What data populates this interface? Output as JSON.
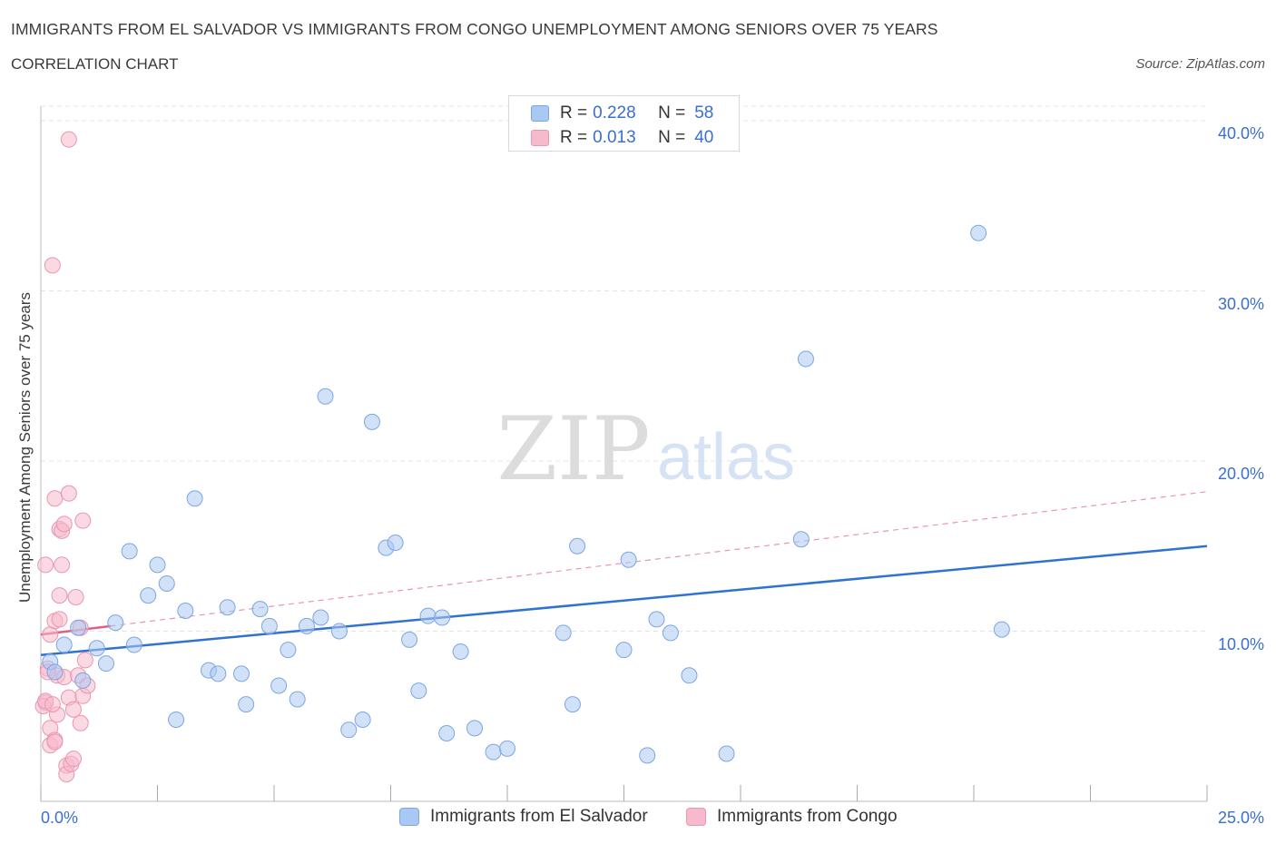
{
  "title": "IMMIGRANTS FROM EL SALVADOR VS IMMIGRANTS FROM CONGO UNEMPLOYMENT AMONG SENIORS OVER 75 YEARS",
  "subtitle": "CORRELATION CHART",
  "source": "Source: ZipAtlas.com",
  "watermark": {
    "zip": "ZIP",
    "atlas": "atlas"
  },
  "legend": {
    "rows": [
      {
        "r_label": "R = ",
        "r_value": "0.228",
        "n_label": "N = ",
        "n_value": "58",
        "color": "#a9c8f3",
        "border": "#7ea6e0"
      },
      {
        "r_label": "R = ",
        "r_value": "0.013",
        "n_label": "N = ",
        "n_value": "40",
        "color": "#f7b9cc",
        "border": "#e996b0"
      }
    ]
  },
  "bottom_legend": {
    "items": [
      {
        "label": "Immigrants from El Salvador",
        "color": "#a9c8f3",
        "border": "#7ea6e0"
      },
      {
        "label": "Immigrants from Congo",
        "color": "#f7b9cc",
        "border": "#e996b0"
      }
    ]
  },
  "chart_data": {
    "type": "scatter",
    "title": "IMMIGRANTS FROM EL SALVADOR VS IMMIGRANTS FROM CONGO UNEMPLOYMENT AMONG SENIORS OVER 75 YEARS",
    "xlabel": "",
    "ylabel": "Unemployment Among Seniors over 75 years",
    "xlim": [
      0,
      25
    ],
    "ylim": [
      0,
      40
    ],
    "x_tick_labels": [
      "0.0%",
      "25.0%"
    ],
    "y_tick_labels": [
      "10.0%",
      "20.0%",
      "30.0%",
      "40.0%"
    ],
    "y_ticks": [
      10,
      20,
      30,
      40
    ],
    "grid": true,
    "series": [
      {
        "name": "Immigrants from El Salvador",
        "color": "#a9c8f3",
        "stroke": "#7ea6e0",
        "line_color": "#2f72d2",
        "trend": {
          "x": [
            0,
            25
          ],
          "y": [
            8.6,
            15.0
          ],
          "style": "solid"
        },
        "points": [
          [
            0.2,
            8.2
          ],
          [
            0.3,
            7.6
          ],
          [
            0.5,
            9.2
          ],
          [
            0.8,
            10.2
          ],
          [
            0.9,
            7.1
          ],
          [
            1.2,
            9.0
          ],
          [
            1.4,
            8.1
          ],
          [
            1.6,
            10.5
          ],
          [
            1.9,
            14.7
          ],
          [
            2.0,
            9.2
          ],
          [
            2.3,
            12.1
          ],
          [
            2.5,
            13.9
          ],
          [
            2.7,
            12.8
          ],
          [
            2.9,
            4.8
          ],
          [
            3.1,
            11.2
          ],
          [
            3.3,
            17.8
          ],
          [
            3.6,
            7.7
          ],
          [
            3.8,
            7.5
          ],
          [
            4.0,
            11.4
          ],
          [
            4.3,
            7.5
          ],
          [
            4.4,
            5.7
          ],
          [
            4.7,
            11.3
          ],
          [
            4.9,
            10.3
          ],
          [
            5.1,
            6.8
          ],
          [
            5.3,
            8.9
          ],
          [
            5.5,
            6.0
          ],
          [
            5.7,
            10.3
          ],
          [
            6.0,
            10.8
          ],
          [
            6.1,
            23.8
          ],
          [
            6.4,
            10.0
          ],
          [
            6.6,
            4.2
          ],
          [
            6.9,
            4.8
          ],
          [
            7.1,
            22.3
          ],
          [
            7.4,
            14.9
          ],
          [
            7.6,
            15.2
          ],
          [
            7.9,
            9.5
          ],
          [
            8.1,
            6.5
          ],
          [
            8.3,
            10.9
          ],
          [
            8.6,
            10.8
          ],
          [
            8.7,
            4.0
          ],
          [
            9.0,
            8.8
          ],
          [
            9.3,
            4.3
          ],
          [
            9.7,
            2.9
          ],
          [
            10.0,
            3.1
          ],
          [
            11.2,
            9.9
          ],
          [
            11.4,
            5.7
          ],
          [
            11.5,
            15.0
          ],
          [
            12.5,
            8.9
          ],
          [
            12.6,
            14.2
          ],
          [
            13.0,
            2.7
          ],
          [
            13.2,
            10.7
          ],
          [
            13.5,
            9.9
          ],
          [
            13.9,
            7.4
          ],
          [
            14.7,
            2.8
          ],
          [
            16.3,
            15.4
          ],
          [
            16.4,
            26.0
          ],
          [
            20.1,
            33.4
          ],
          [
            20.6,
            10.1
          ]
        ]
      },
      {
        "name": "Immigrants from Congo",
        "color": "#f7b9cc",
        "stroke": "#e996b0",
        "line_color": "#e0608a",
        "trend": {
          "x": [
            0,
            25
          ],
          "y": [
            9.8,
            18.2
          ],
          "style": "dashed"
        },
        "trend_solid": {
          "x": [
            0,
            1.5
          ],
          "y": [
            9.8,
            10.3
          ]
        },
        "points": [
          [
            0.1,
            5.8
          ],
          [
            0.1,
            13.9
          ],
          [
            0.15,
            7.8
          ],
          [
            0.2,
            4.3
          ],
          [
            0.2,
            3.3
          ],
          [
            0.2,
            9.8
          ],
          [
            0.25,
            31.5
          ],
          [
            0.3,
            10.6
          ],
          [
            0.3,
            17.8
          ],
          [
            0.3,
            3.6
          ],
          [
            0.35,
            5.1
          ],
          [
            0.35,
            7.4
          ],
          [
            0.4,
            12.1
          ],
          [
            0.4,
            16.0
          ],
          [
            0.4,
            10.7
          ],
          [
            0.45,
            13.9
          ],
          [
            0.45,
            15.9
          ],
          [
            0.5,
            16.3
          ],
          [
            0.5,
            7.3
          ],
          [
            0.55,
            2.1
          ],
          [
            0.55,
            1.6
          ],
          [
            0.6,
            6.1
          ],
          [
            0.6,
            18.1
          ],
          [
            0.6,
            38.9
          ],
          [
            0.65,
            2.2
          ],
          [
            0.7,
            2.5
          ],
          [
            0.7,
            5.4
          ],
          [
            0.75,
            12.0
          ],
          [
            0.8,
            7.4
          ],
          [
            0.85,
            10.2
          ],
          [
            0.85,
            4.6
          ],
          [
            0.9,
            16.5
          ],
          [
            0.9,
            6.2
          ],
          [
            0.95,
            8.3
          ],
          [
            1.0,
            6.8
          ],
          [
            0.05,
            5.6
          ],
          [
            0.1,
            5.9
          ],
          [
            0.15,
            7.6
          ],
          [
            0.25,
            5.7
          ],
          [
            0.3,
            3.5
          ]
        ]
      }
    ]
  }
}
